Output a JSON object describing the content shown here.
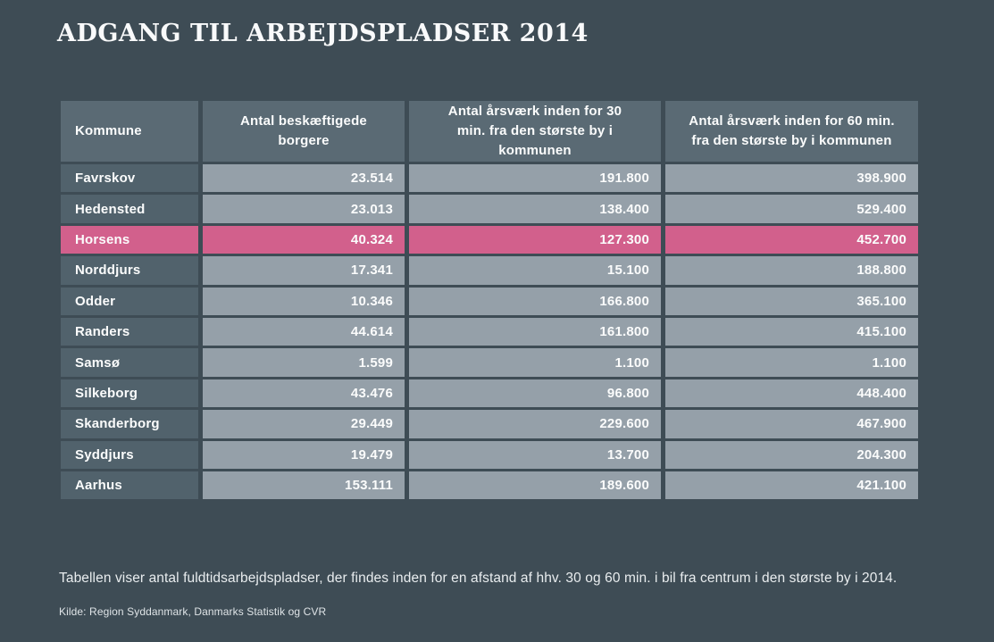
{
  "title": "ADGANG TIL ARBEJDSPLADSER 2014",
  "footnote": "Tabellen viser antal fuldtidsarbejdspladser, der findes inden for en afstand af hhv. 30 og 60 min. i bil fra centrum i den største by i 2014.",
  "source": "Kilde: Region Syddanmark, Danmarks Statistik og CVR",
  "colors": {
    "background": "#3e4c55",
    "header_cell": "#5a6a74",
    "kommune_cell": "#51626c",
    "value_cell": "#95a0a9",
    "highlight": "#d2608c",
    "text": "#ffffff"
  },
  "chart_data": {
    "type": "table",
    "title": "ADGANG TIL ARBEJDSPLADSER 2014",
    "columns": [
      "Kommune",
      "Antal beskæftigede borgere",
      "Antal årsværk inden for 30 min. fra den største by i kommunen",
      "Antal årsværk inden for 60 min. fra den største by i kommunen"
    ],
    "highlighted_row": "Horsens",
    "rows": [
      {
        "kommune": "Favrskov",
        "values": [
          "23.514",
          "191.800",
          "398.900"
        ],
        "highlighted": false
      },
      {
        "kommune": "Hedensted",
        "values": [
          "23.013",
          "138.400",
          "529.400"
        ],
        "highlighted": false
      },
      {
        "kommune": "Horsens",
        "values": [
          "40.324",
          "127.300",
          "452.700"
        ],
        "highlighted": true
      },
      {
        "kommune": "Norddjurs",
        "values": [
          "17.341",
          "15.100",
          "188.800"
        ],
        "highlighted": false
      },
      {
        "kommune": "Odder",
        "values": [
          "10.346",
          "166.800",
          "365.100"
        ],
        "highlighted": false
      },
      {
        "kommune": "Randers",
        "values": [
          "44.614",
          "161.800",
          "415.100"
        ],
        "highlighted": false
      },
      {
        "kommune": "Samsø",
        "values": [
          "1.599",
          "1.100",
          "1.100"
        ],
        "highlighted": false
      },
      {
        "kommune": "Silkeborg",
        "values": [
          "43.476",
          "96.800",
          "448.400"
        ],
        "highlighted": false
      },
      {
        "kommune": "Skanderborg",
        "values": [
          "29.449",
          "229.600",
          "467.900"
        ],
        "highlighted": false
      },
      {
        "kommune": "Syddjurs",
        "values": [
          "19.479",
          "13.700",
          "204.300"
        ],
        "highlighted": false
      },
      {
        "kommune": "Aarhus",
        "values": [
          "153.111",
          "189.600",
          "421.100"
        ],
        "highlighted": false
      }
    ]
  }
}
